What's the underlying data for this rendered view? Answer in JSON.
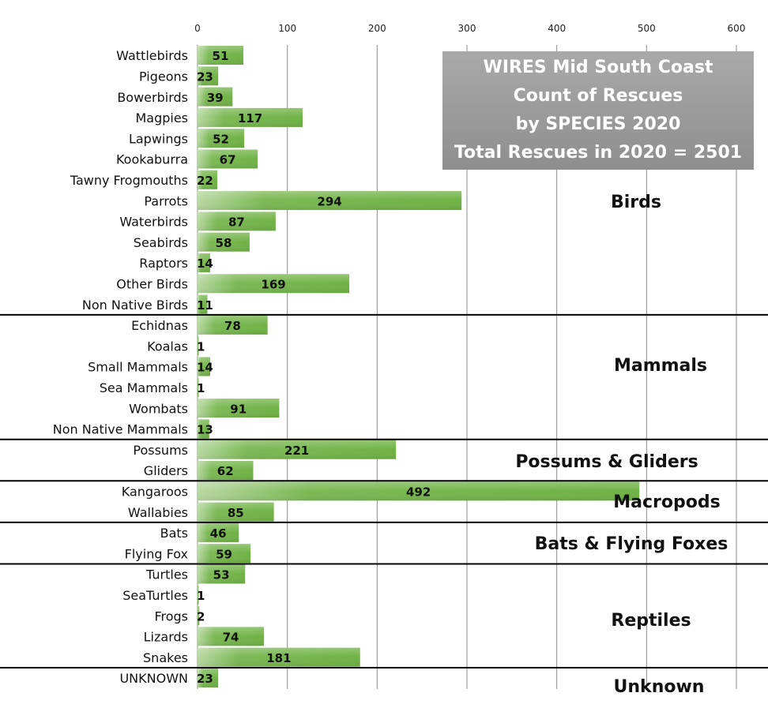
{
  "chart_data": {
    "type": "bar",
    "orientation": "horizontal",
    "title_lines": [
      "WIRES Mid South Coast",
      "Count of Rescues",
      "by SPECIES 2020",
      "Total Rescues in 2020 =  2501"
    ],
    "xlim": [
      0,
      600
    ],
    "xticks": [
      "0",
      "100",
      "200",
      "300",
      "400",
      "500",
      "600"
    ],
    "xtick_values": [
      0,
      100,
      200,
      300,
      400,
      500,
      600
    ],
    "grid": true,
    "bar_color": "#72b34a",
    "categories": [
      "Wattlebirds",
      "Pigeons",
      "Bowerbirds",
      "Magpies",
      "Lapwings",
      "Kookaburra",
      "Tawny Frogmouths",
      "Parrots",
      "Waterbirds",
      "Seabirds",
      "Raptors",
      "Other Birds",
      "Non Native Birds",
      "Echidnas",
      "Koalas",
      "Small Mammals",
      "Sea Mammals",
      "Wombats",
      "Non Native Mammals",
      "Possums",
      "Gliders",
      "Kangaroos",
      "Wallabies",
      "Bats",
      "Flying Fox",
      "Turtles",
      "SeaTurtles",
      "Frogs",
      "Lizards",
      "Snakes",
      "UNKNOWN"
    ],
    "values": [
      51,
      23,
      39,
      117,
      52,
      67,
      22,
      294,
      87,
      58,
      14,
      169,
      11,
      78,
      1,
      14,
      1,
      91,
      13,
      221,
      62,
      492,
      85,
      46,
      59,
      53,
      1,
      2,
      74,
      181,
      23
    ],
    "value_labels": [
      "51",
      "23",
      "39",
      "117",
      "52",
      "67",
      "22",
      "294",
      "87",
      "58",
      "14",
      "169",
      "11",
      "78",
      "1",
      "14",
      "1",
      "91",
      "13",
      "221",
      "62",
      "492",
      "85",
      "46",
      "59",
      "53",
      "1",
      "2",
      "74",
      "181",
      "23"
    ],
    "groups": [
      {
        "name": "Birds",
        "start": 0,
        "end": 12
      },
      {
        "name": "Mammals",
        "start": 13,
        "end": 18
      },
      {
        "name": "Possums & Gliders",
        "start": 19,
        "end": 20
      },
      {
        "name": "Macropods",
        "start": 21,
        "end": 22
      },
      {
        "name": "Bats & Flying Foxes",
        "start": 23,
        "end": 24
      },
      {
        "name": "Reptiles",
        "start": 25,
        "end": 29
      },
      {
        "name": "Unknown",
        "start": 30,
        "end": 30
      }
    ]
  }
}
